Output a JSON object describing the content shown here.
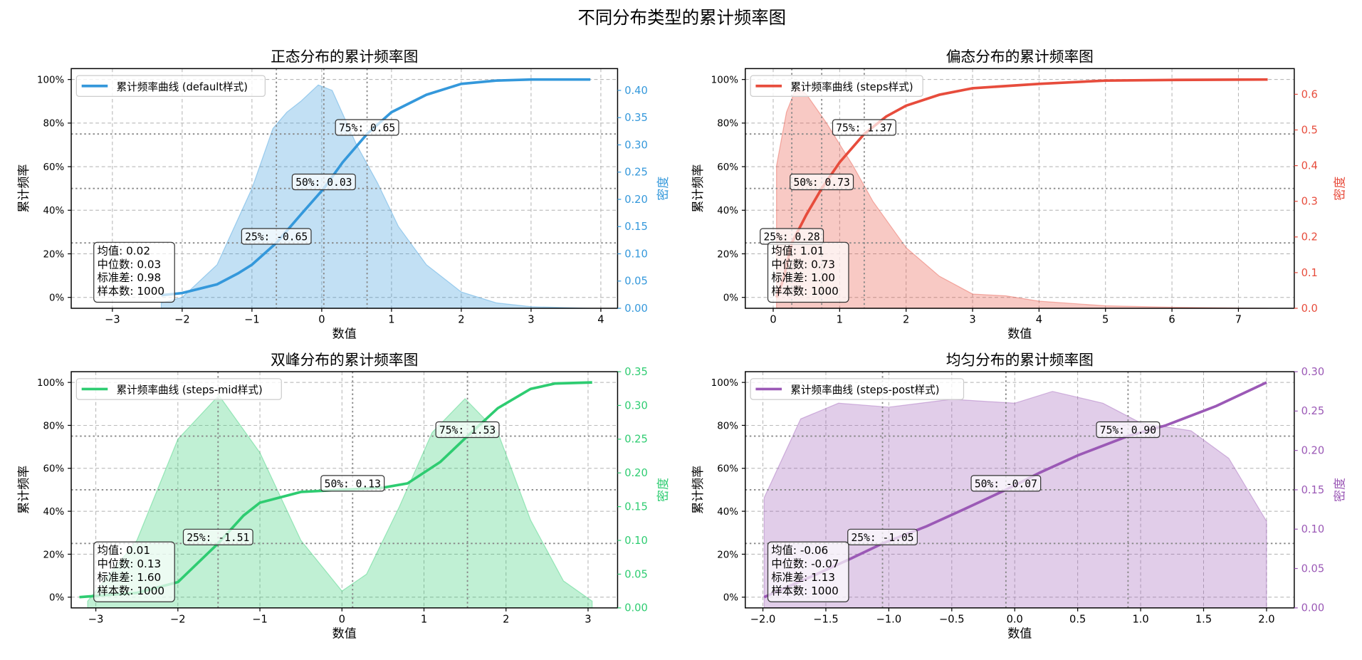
{
  "chart_data": {
    "suptitle": "不同分布类型的累计频率图",
    "panels": [
      {
        "type": "line",
        "title": "正态分布的累计频率图",
        "xlabel": "数值",
        "ylabel": "累计频率",
        "y2label": "密度",
        "color": "#3498db",
        "legend": "累计频率曲线 (default样式)",
        "legend_position": "upper-left",
        "grid": true,
        "xlim": [
          -3.59,
          4.24
        ],
        "ylim": [
          -0.05,
          1.05
        ],
        "y2lim": [
          0,
          0.44
        ],
        "xticks": [
          -3,
          -2,
          -1,
          0,
          1,
          2,
          3,
          4
        ],
        "xtick_labels": [
          "−3",
          "−2",
          "−1",
          "0",
          "1",
          "2",
          "3",
          "4"
        ],
        "yticks": [
          0,
          0.2,
          0.4,
          0.6,
          0.8,
          1.0
        ],
        "ytick_labels": [
          "0%",
          "20%",
          "40%",
          "60%",
          "80%",
          "100%"
        ],
        "y2ticks": [
          0,
          0.05,
          0.1,
          0.15,
          0.2,
          0.25,
          0.3,
          0.35,
          0.4
        ],
        "y2tick_labels": [
          "0.00",
          "0.05",
          "0.10",
          "0.15",
          "0.20",
          "0.25",
          "0.30",
          "0.35",
          "0.40"
        ],
        "cdf": [
          [
            -2.3,
            0.01
          ],
          [
            -2,
            0.02
          ],
          [
            -1.5,
            0.06
          ],
          [
            -1.2,
            0.11
          ],
          [
            -1,
            0.15
          ],
          [
            -0.65,
            0.25
          ],
          [
            -0.3,
            0.38
          ],
          [
            0.03,
            0.5
          ],
          [
            0.3,
            0.62
          ],
          [
            0.65,
            0.75
          ],
          [
            1,
            0.85
          ],
          [
            1.5,
            0.93
          ],
          [
            2,
            0.98
          ],
          [
            2.5,
            0.995
          ],
          [
            3,
            1.0
          ],
          [
            3.85,
            1.0
          ]
        ],
        "density": [
          [
            -2.3,
            0.01
          ],
          [
            -2,
            0.02
          ],
          [
            -1.5,
            0.08
          ],
          [
            -1,
            0.22
          ],
          [
            -0.7,
            0.33
          ],
          [
            -0.5,
            0.36
          ],
          [
            -0.3,
            0.38
          ],
          [
            -0.05,
            0.41
          ],
          [
            0.15,
            0.4
          ],
          [
            0.5,
            0.3
          ],
          [
            0.8,
            0.23
          ],
          [
            1.1,
            0.15
          ],
          [
            1.5,
            0.08
          ],
          [
            2,
            0.03
          ],
          [
            2.5,
            0.01
          ],
          [
            3,
            0.003
          ],
          [
            3.85,
            0
          ]
        ],
        "quantiles": [
          {
            "p": 0.25,
            "value": -0.65,
            "label": "25%: -0.65"
          },
          {
            "p": 0.5,
            "value": 0.03,
            "label": "50%: 0.03"
          },
          {
            "p": 0.75,
            "value": 0.65,
            "label": "75%: 0.65"
          }
        ],
        "stats": [
          "均值: 0.02",
          "中位数: 0.03",
          "标准差: 0.98",
          "样本数: 1000"
        ]
      },
      {
        "type": "line",
        "title": "偏态分布的累计频率图",
        "xlabel": "数值",
        "ylabel": "累计频率",
        "y2label": "密度",
        "color": "#e74c3c",
        "legend": "累计频率曲线 (steps样式)",
        "legend_position": "upper-left",
        "grid": true,
        "xlim": [
          -0.42,
          7.84
        ],
        "ylim": [
          -0.05,
          1.05
        ],
        "y2lim": [
          0,
          0.672
        ],
        "xticks": [
          0,
          1,
          2,
          3,
          4,
          5,
          6,
          7
        ],
        "xtick_labels": [
          "0",
          "1",
          "2",
          "3",
          "4",
          "5",
          "6",
          "7"
        ],
        "yticks": [
          0,
          0.2,
          0.4,
          0.6,
          0.8,
          1.0
        ],
        "ytick_labels": [
          "0%",
          "20%",
          "40%",
          "60%",
          "80%",
          "100%"
        ],
        "y2ticks": [
          0,
          0.1,
          0.2,
          0.3,
          0.4,
          0.5,
          0.6
        ],
        "y2tick_labels": [
          "0.0",
          "0.1",
          "0.2",
          "0.3",
          "0.4",
          "0.5",
          "0.6"
        ],
        "cdf": [
          [
            0.05,
            0
          ],
          [
            0.15,
            0.08
          ],
          [
            0.28,
            0.25
          ],
          [
            0.5,
            0.38
          ],
          [
            0.73,
            0.5
          ],
          [
            1.0,
            0.62
          ],
          [
            1.37,
            0.75
          ],
          [
            1.7,
            0.83
          ],
          [
            2,
            0.88
          ],
          [
            2.5,
            0.93
          ],
          [
            3,
            0.96
          ],
          [
            4,
            0.98
          ],
          [
            5,
            0.995
          ],
          [
            6,
            0.998
          ],
          [
            7.44,
            1.0
          ]
        ],
        "density": [
          [
            0.05,
            0.4
          ],
          [
            0.2,
            0.55
          ],
          [
            0.35,
            0.62
          ],
          [
            0.5,
            0.6
          ],
          [
            0.8,
            0.52
          ],
          [
            1.2,
            0.4
          ],
          [
            1.5,
            0.3
          ],
          [
            2,
            0.17
          ],
          [
            2.5,
            0.09
          ],
          [
            3,
            0.04
          ],
          [
            3.5,
            0.035
          ],
          [
            4,
            0.02
          ],
          [
            5,
            0.007
          ],
          [
            6,
            0.003
          ],
          [
            7.44,
            0
          ]
        ],
        "quantiles": [
          {
            "p": 0.25,
            "value": 0.28,
            "label": "25%: 0.28"
          },
          {
            "p": 0.5,
            "value": 0.73,
            "label": "50%: 0.73"
          },
          {
            "p": 0.75,
            "value": 1.37,
            "label": "75%: 1.37"
          }
        ],
        "stats": [
          "均值: 1.01",
          "中位数: 0.73",
          "标准差: 1.00",
          "样本数: 1000"
        ]
      },
      {
        "type": "line",
        "title": "双峰分布的累计频率图",
        "xlabel": "数值",
        "ylabel": "累计频率",
        "y2label": "密度",
        "color": "#2ecc71",
        "legend": "累计频率曲线 (steps-mid样式)",
        "legend_position": "upper-left",
        "grid": true,
        "xlim": [
          -3.3,
          3.36
        ],
        "ylim": [
          -0.05,
          1.05
        ],
        "y2lim": [
          0,
          0.35
        ],
        "xticks": [
          -3,
          -2,
          -1,
          0,
          1,
          2,
          3
        ],
        "xtick_labels": [
          "−3",
          "−2",
          "−1",
          "0",
          "1",
          "2",
          "3"
        ],
        "yticks": [
          0,
          0.2,
          0.4,
          0.6,
          0.8,
          1.0
        ],
        "ytick_labels": [
          "0%",
          "20%",
          "40%",
          "60%",
          "80%",
          "100%"
        ],
        "y2ticks": [
          0,
          0.05,
          0.1,
          0.15,
          0.2,
          0.25,
          0.3,
          0.35
        ],
        "y2tick_labels": [
          "0.00",
          "0.05",
          "0.10",
          "0.15",
          "0.20",
          "0.25",
          "0.30",
          "0.35"
        ],
        "cdf": [
          [
            -3.2,
            0
          ],
          [
            -2.5,
            0.02
          ],
          [
            -2,
            0.07
          ],
          [
            -1.51,
            0.25
          ],
          [
            -1.2,
            0.38
          ],
          [
            -1,
            0.44
          ],
          [
            -0.5,
            0.49
          ],
          [
            0,
            0.5
          ],
          [
            0.5,
            0.51
          ],
          [
            0.8,
            0.53
          ],
          [
            1.2,
            0.63
          ],
          [
            1.53,
            0.75
          ],
          [
            1.9,
            0.88
          ],
          [
            2.3,
            0.97
          ],
          [
            2.6,
            0.995
          ],
          [
            3.05,
            1.0
          ]
        ],
        "density": [
          [
            -3.1,
            0.01
          ],
          [
            -2.5,
            0.1
          ],
          [
            -2,
            0.25
          ],
          [
            -1.5,
            0.315
          ],
          [
            -1,
            0.23
          ],
          [
            -0.5,
            0.1
          ],
          [
            0,
            0.025
          ],
          [
            0.3,
            0.05
          ],
          [
            0.7,
            0.15
          ],
          [
            1.1,
            0.26
          ],
          [
            1.5,
            0.31
          ],
          [
            1.9,
            0.26
          ],
          [
            2.3,
            0.13
          ],
          [
            2.7,
            0.04
          ],
          [
            3.05,
            0.01
          ]
        ],
        "quantiles": [
          {
            "p": 0.25,
            "value": -1.51,
            "label": "25%: -1.51"
          },
          {
            "p": 0.5,
            "value": 0.13,
            "label": "50%: 0.13"
          },
          {
            "p": 0.75,
            "value": 1.53,
            "label": "75%: 1.53"
          }
        ],
        "stats": [
          "均值: 0.01",
          "中位数: 0.13",
          "标准差: 1.60",
          "样本数: 1000"
        ]
      },
      {
        "type": "line",
        "title": "均匀分布的累计频率图",
        "xlabel": "数值",
        "ylabel": "累计频率",
        "y2label": "密度",
        "color": "#9b59b6",
        "legend": "累计频率曲线 (steps-post样式)",
        "legend_position": "upper-left",
        "grid": true,
        "xlim": [
          -2.14,
          2.22
        ],
        "ylim": [
          -0.05,
          1.05
        ],
        "y2lim": [
          0,
          0.3
        ],
        "xticks": [
          -2,
          -1.5,
          -1,
          -0.5,
          0,
          0.5,
          1,
          1.5,
          2
        ],
        "xtick_labels": [
          "−2.0",
          "−1.5",
          "−1.0",
          "−0.5",
          "0.0",
          "0.5",
          "1.0",
          "1.5",
          "2.0"
        ],
        "yticks": [
          0,
          0.2,
          0.4,
          0.6,
          0.8,
          1.0
        ],
        "ytick_labels": [
          "0%",
          "20%",
          "40%",
          "60%",
          "80%",
          "100%"
        ],
        "y2ticks": [
          0,
          0.05,
          0.1,
          0.15,
          0.2,
          0.25,
          0.3
        ],
        "y2tick_labels": [
          "0.00",
          "0.05",
          "0.10",
          "0.15",
          "0.20",
          "0.25",
          "0.30"
        ],
        "cdf": [
          [
            -1.99,
            0
          ],
          [
            -1.6,
            0.1
          ],
          [
            -1.3,
            0.18
          ],
          [
            -1.05,
            0.25
          ],
          [
            -0.7,
            0.33
          ],
          [
            -0.4,
            0.41
          ],
          [
            -0.07,
            0.5
          ],
          [
            0.2,
            0.58
          ],
          [
            0.5,
            0.66
          ],
          [
            0.9,
            0.75
          ],
          [
            1.2,
            0.8
          ],
          [
            1.6,
            0.89
          ],
          [
            2.0,
            1.0
          ]
        ],
        "density": [
          [
            -1.99,
            0.14
          ],
          [
            -1.7,
            0.24
          ],
          [
            -1.4,
            0.26
          ],
          [
            -1,
            0.255
          ],
          [
            -0.5,
            0.265
          ],
          [
            0,
            0.26
          ],
          [
            0.3,
            0.275
          ],
          [
            0.7,
            0.26
          ],
          [
            1,
            0.235
          ],
          [
            1.4,
            0.225
          ],
          [
            1.7,
            0.19
          ],
          [
            2,
            0.11
          ]
        ],
        "quantiles": [
          {
            "p": 0.25,
            "value": -1.05,
            "label": "25%: -1.05"
          },
          {
            "p": 0.5,
            "value": -0.07,
            "label": "50%: -0.07"
          },
          {
            "p": 0.75,
            "value": 0.9,
            "label": "75%: 0.90"
          }
        ],
        "stats": [
          "均值: -0.06",
          "中位数: -0.07",
          "标准差: 1.13",
          "样本数: 1000"
        ]
      }
    ]
  }
}
